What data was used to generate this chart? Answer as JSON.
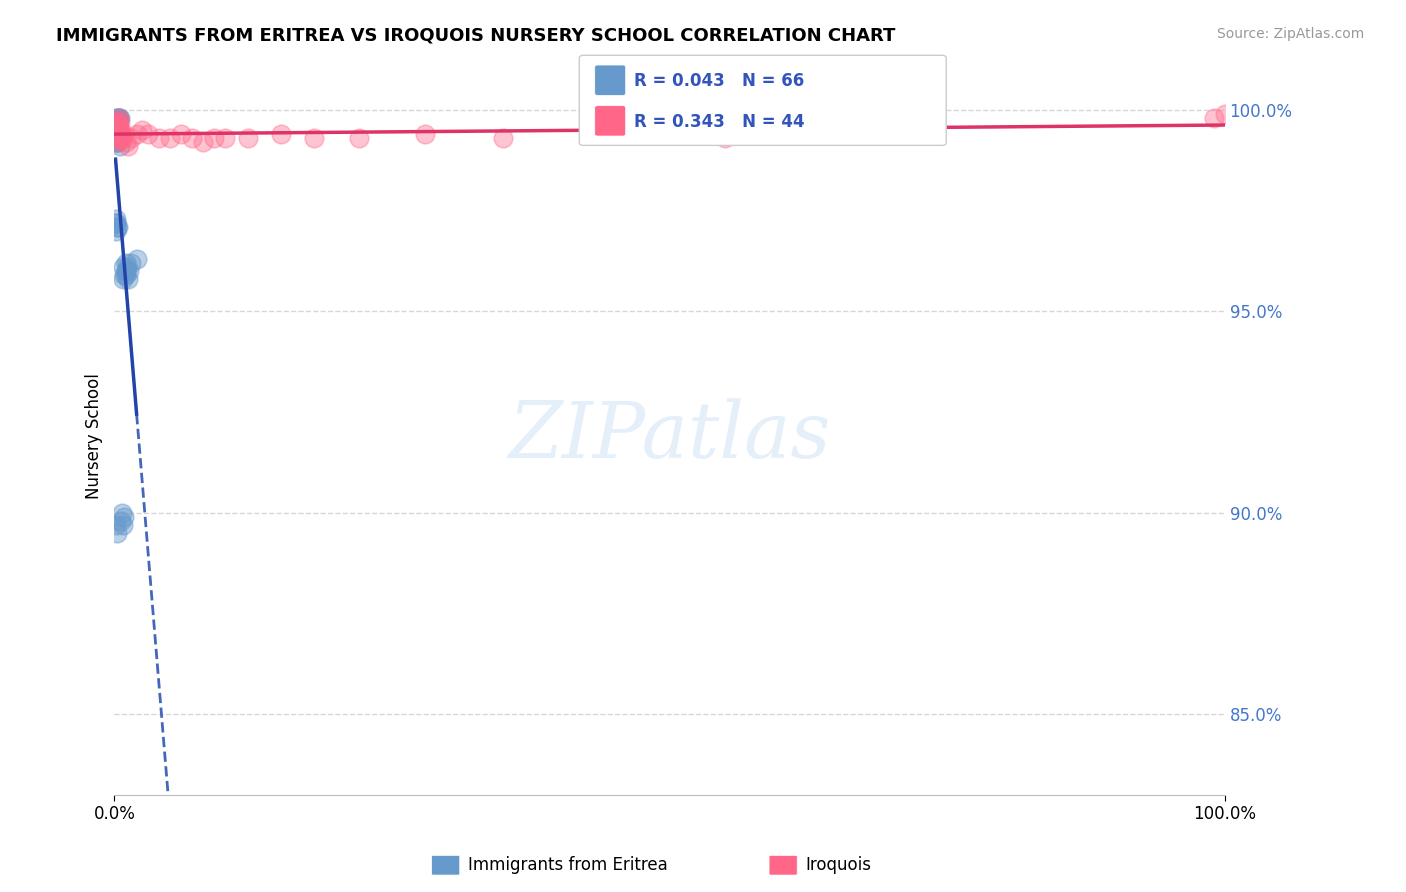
{
  "title": "IMMIGRANTS FROM ERITREA VS IROQUOIS NURSERY SCHOOL CORRELATION CHART",
  "source_text": "Source: ZipAtlas.com",
  "ylabel": "Nursery School",
  "xmin": 0.0,
  "xmax": 1.0,
  "ymin": 0.83,
  "ymax": 1.008,
  "yticks": [
    0.85,
    0.9,
    0.95,
    1.0
  ],
  "ytick_labels": [
    "85.0%",
    "90.0%",
    "95.0%",
    "100.0%"
  ],
  "xticks": [
    0.0,
    1.0
  ],
  "xtick_labels": [
    "0.0%",
    "100.0%"
  ],
  "blue_label": "Immigrants from Eritrea",
  "pink_label": "Iroquois",
  "blue_R": 0.043,
  "blue_N": 66,
  "pink_R": 0.343,
  "pink_N": 44,
  "blue_color": "#6699CC",
  "pink_color": "#FF6688",
  "legend_text_color": "#3355BB",
  "watermark": "ZIPatlas",
  "background_color": "#FFFFFF",
  "grid_color": "#CCCCCC",
  "blue_x": [
    0.001,
    0.002,
    0.001,
    0.003,
    0.002,
    0.001,
    0.004,
    0.002,
    0.001,
    0.003,
    0.001,
    0.002,
    0.005,
    0.001,
    0.002,
    0.001,
    0.003,
    0.001,
    0.002,
    0.001,
    0.001,
    0.002,
    0.001,
    0.003,
    0.002,
    0.001,
    0.001,
    0.002,
    0.001,
    0.001,
    0.002,
    0.003,
    0.001,
    0.002,
    0.001,
    0.005,
    0.003,
    0.002,
    0.001,
    0.001,
    0.001,
    0.002,
    0.001,
    0.001,
    0.003,
    0.001,
    0.002,
    0.001,
    0.001,
    0.002,
    0.01,
    0.008,
    0.01,
    0.012,
    0.009,
    0.011,
    0.013,
    0.01,
    0.008,
    0.01,
    0.007,
    0.009,
    0.006,
    0.008,
    0.015,
    0.02
  ],
  "blue_y": [
    0.998,
    0.997,
    0.996,
    0.998,
    0.997,
    0.997,
    0.998,
    0.997,
    0.996,
    0.997,
    0.996,
    0.997,
    0.998,
    0.997,
    0.997,
    0.996,
    0.998,
    0.997,
    0.997,
    0.996,
    0.996,
    0.997,
    0.996,
    0.997,
    0.997,
    0.996,
    0.997,
    0.997,
    0.995,
    0.995,
    0.994,
    0.993,
    0.994,
    0.992,
    0.992,
    0.991,
    0.993,
    0.995,
    0.994,
    0.994,
    0.993,
    0.992,
    0.973,
    0.972,
    0.971,
    0.97,
    0.971,
    0.972,
    0.897,
    0.895,
    0.962,
    0.961,
    0.96,
    0.958,
    0.959,
    0.961,
    0.96,
    0.959,
    0.958,
    0.96,
    0.9,
    0.899,
    0.898,
    0.897,
    0.962,
    0.963
  ],
  "pink_x": [
    0.002,
    0.003,
    0.002,
    0.004,
    0.003,
    0.002,
    0.005,
    0.003,
    0.002,
    0.004,
    0.005,
    0.006,
    0.004,
    0.003,
    0.004,
    0.005,
    0.006,
    0.007,
    0.008,
    0.009,
    0.01,
    0.012,
    0.015,
    0.02,
    0.025,
    0.03,
    0.04,
    0.05,
    0.06,
    0.07,
    0.08,
    0.09,
    0.1,
    0.12,
    0.15,
    0.18,
    0.22,
    0.28,
    0.35,
    0.45,
    0.55,
    0.65,
    0.99,
    1.0
  ],
  "pink_y": [
    0.997,
    0.996,
    0.997,
    0.998,
    0.996,
    0.995,
    0.997,
    0.996,
    0.997,
    0.996,
    0.993,
    0.994,
    0.993,
    0.992,
    0.993,
    0.994,
    0.993,
    0.994,
    0.993,
    0.994,
    0.992,
    0.991,
    0.993,
    0.994,
    0.995,
    0.994,
    0.993,
    0.993,
    0.994,
    0.993,
    0.992,
    0.993,
    0.993,
    0.993,
    0.994,
    0.993,
    0.993,
    0.994,
    0.993,
    0.994,
    0.993,
    0.994,
    0.998,
    0.999
  ]
}
